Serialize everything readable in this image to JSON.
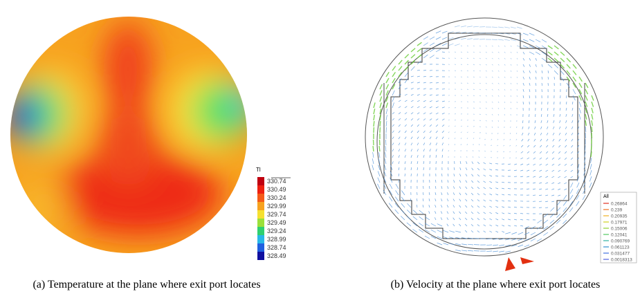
{
  "figures": [
    {
      "caption": "(a) Temperature at the plane where exit port locates",
      "legend": {
        "title": "Tl",
        "labels": [
          "330.74",
          "330.49",
          "330.24",
          "329.99",
          "329.74",
          "329.49",
          "329.24",
          "328.99",
          "328.74",
          "328.49"
        ]
      }
    },
    {
      "caption": "(b) Velocity at the plane where exit port locates",
      "legend": {
        "title": "All",
        "labels": [
          "0.26864",
          "0.239",
          "0.20935",
          "0.17971",
          "0.15006",
          "0.12041",
          "0.090769",
          "0.061123",
          "0.031477",
          "0.0018313"
        ]
      }
    }
  ]
}
